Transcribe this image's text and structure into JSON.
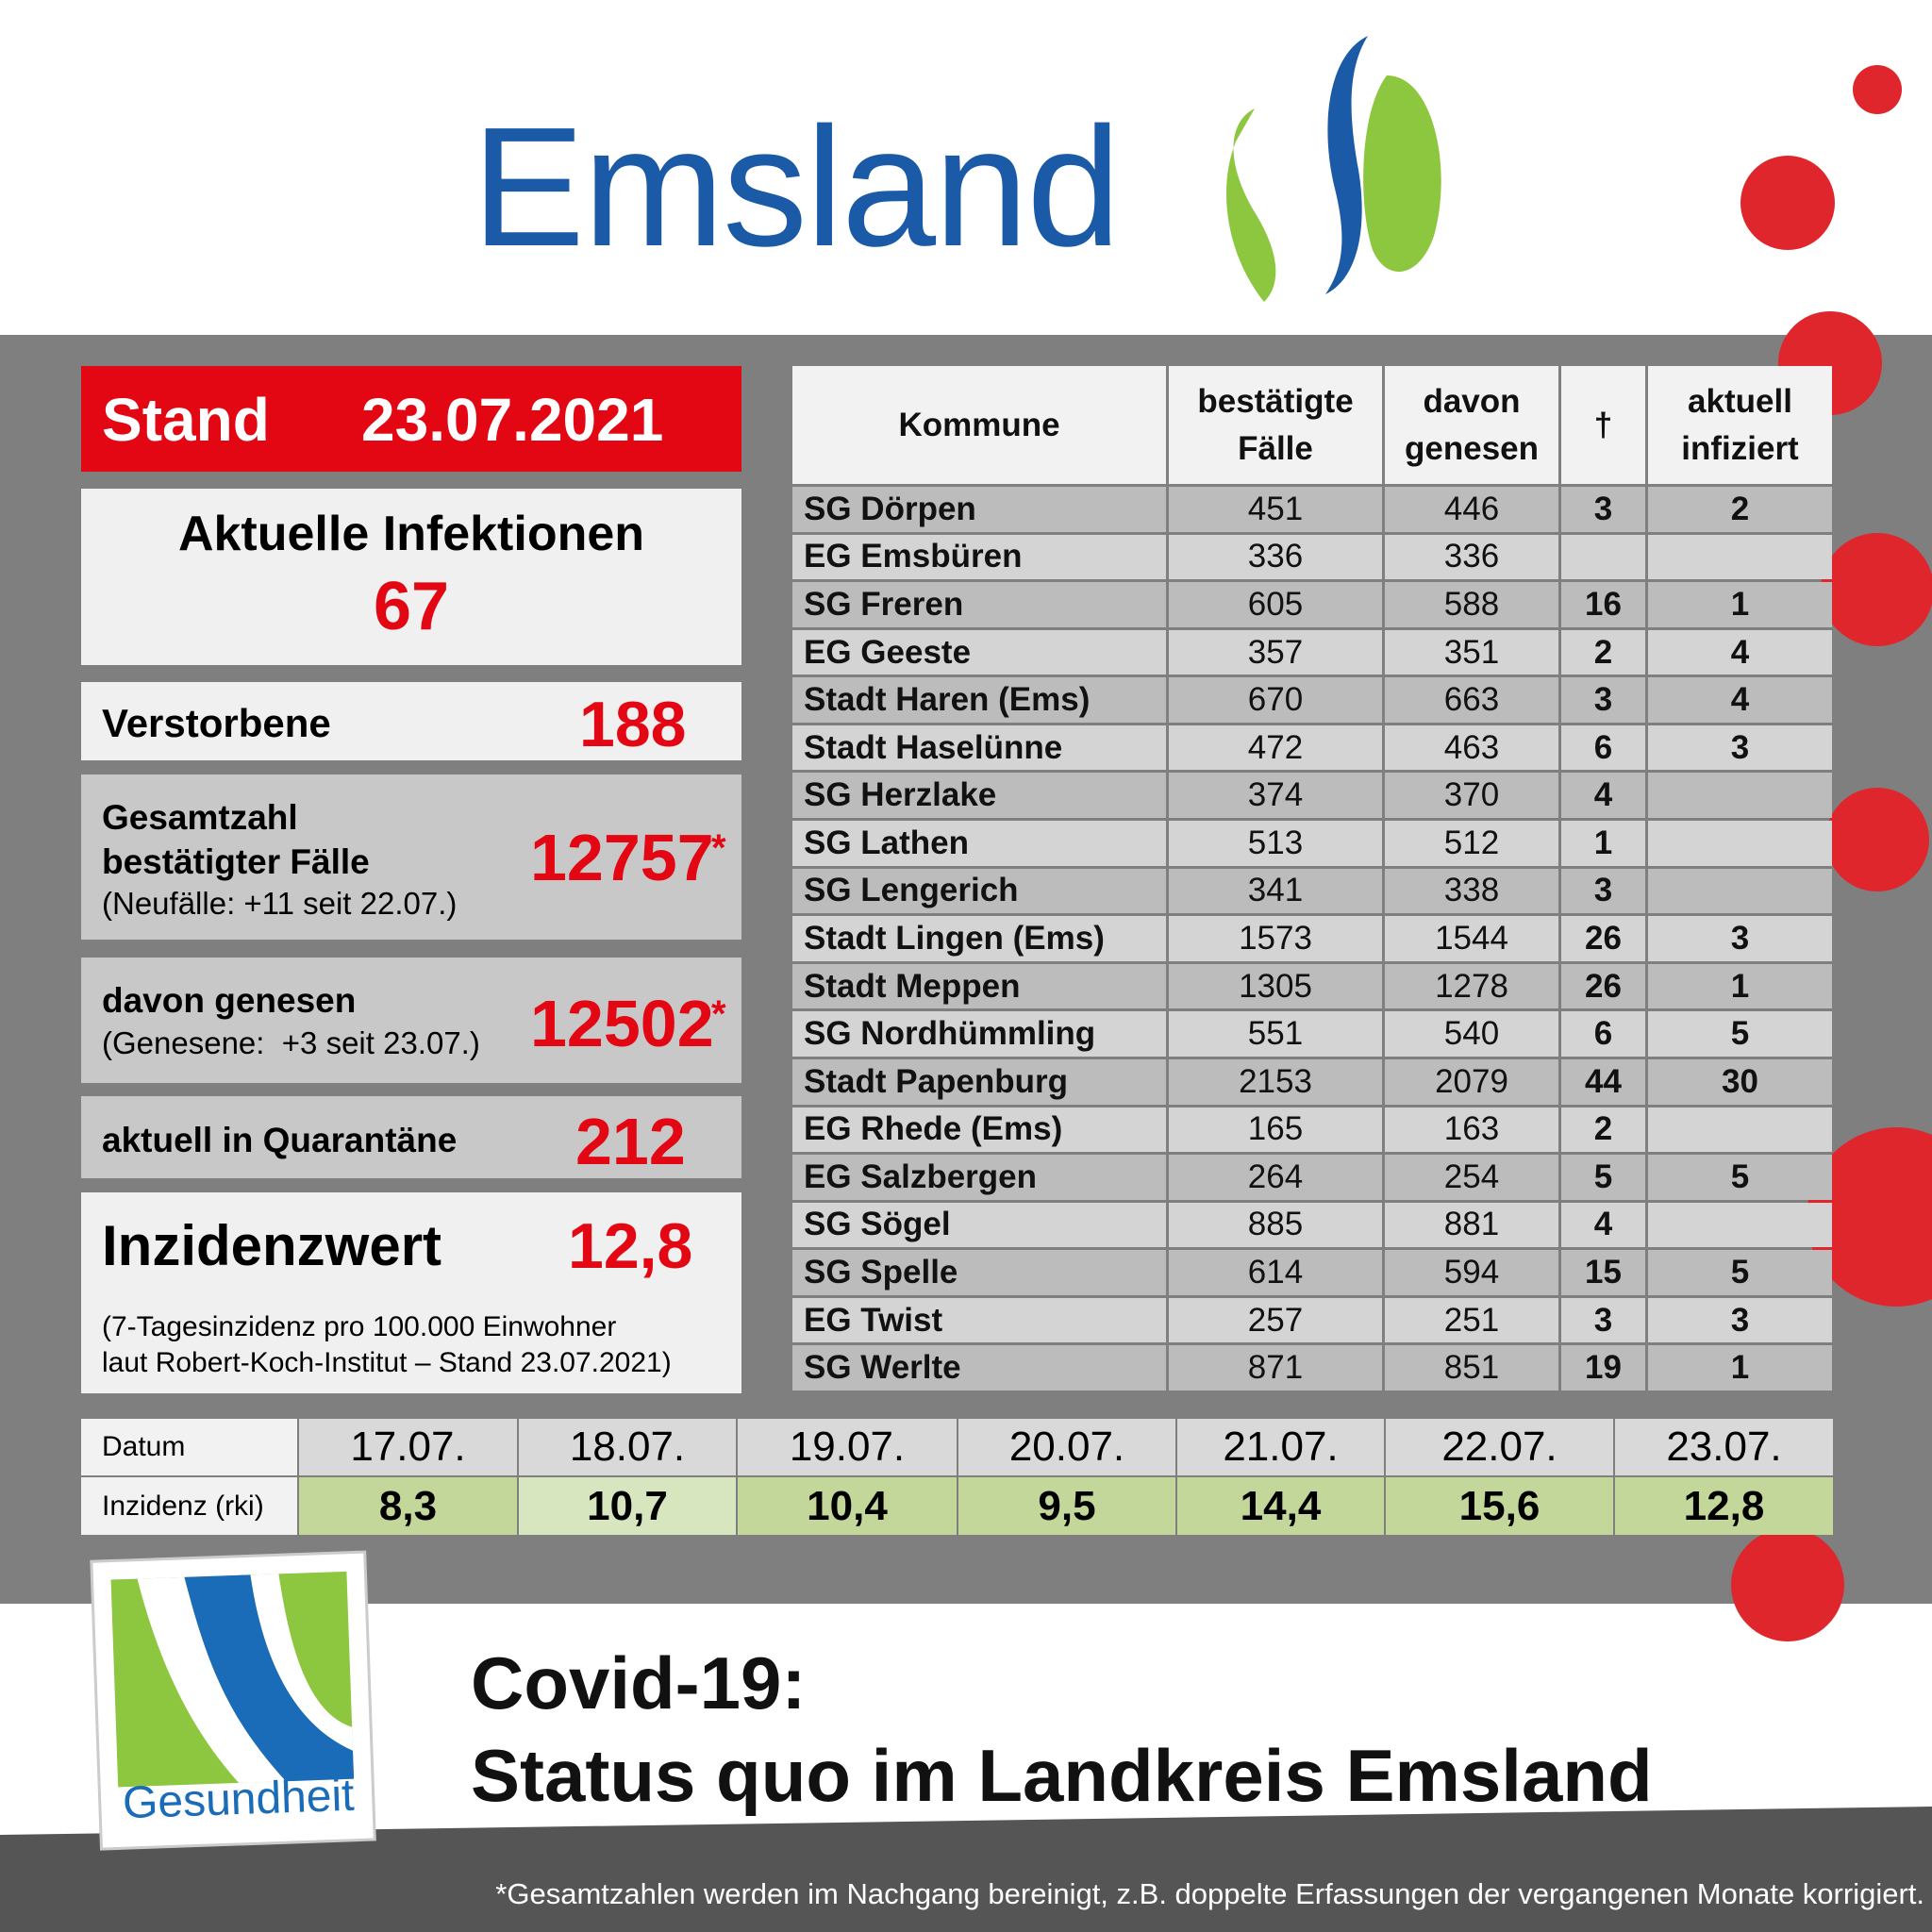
{
  "logo": {
    "name": "Emsland"
  },
  "stand": {
    "label": "Stand",
    "date": "23.07.2021"
  },
  "summary": {
    "infections": {
      "label": "Aktuelle Infektionen",
      "value": 67
    },
    "deaths": {
      "label": "Verstorbene",
      "value": 188
    },
    "total": {
      "label_lines": [
        "Gesamtzahl",
        "bestätigter Fälle"
      ],
      "note": "(Neufälle: +11 seit 22.07.)",
      "value": 12757,
      "mark": "*"
    },
    "recovered": {
      "label": "davon genesen",
      "note": "(Genesene:  +3 seit 23.07.)",
      "value": 12502,
      "mark": "*"
    },
    "quarantine": {
      "label": "aktuell in Quarantäne",
      "value": 212
    },
    "incidence": {
      "label": "Inzidenzwert",
      "value": "12,8",
      "note_lines": [
        "(7-Tagesinzidenz pro 100.000 Einwohner",
        "laut Robert-Koch-Institut – Stand 23.07.2021)"
      ]
    }
  },
  "table": {
    "headers": [
      [
        "Kommune"
      ],
      [
        "bestätigte",
        "Fälle"
      ],
      [
        "davon",
        "genesen"
      ],
      [
        "†"
      ],
      [
        "aktuell",
        "infiziert"
      ]
    ],
    "rows": [
      [
        "SG Dörpen",
        451,
        446,
        3,
        2
      ],
      [
        "EG Emsbüren",
        336,
        336,
        null,
        null
      ],
      [
        "SG Freren",
        605,
        588,
        16,
        1
      ],
      [
        "EG Geeste",
        357,
        351,
        2,
        4
      ],
      [
        "Stadt Haren (Ems)",
        670,
        663,
        3,
        4
      ],
      [
        "Stadt Haselünne",
        472,
        463,
        6,
        3
      ],
      [
        "SG Herzlake",
        374,
        370,
        4,
        null
      ],
      [
        "SG Lathen",
        513,
        512,
        1,
        null
      ],
      [
        "SG Lengerich",
        341,
        338,
        3,
        null
      ],
      [
        "Stadt Lingen (Ems)",
        1573,
        1544,
        26,
        3
      ],
      [
        "Stadt Meppen",
        1305,
        1278,
        26,
        1
      ],
      [
        "SG Nordhümmling",
        551,
        540,
        6,
        5
      ],
      [
        "Stadt Papenburg",
        2153,
        2079,
        44,
        30
      ],
      [
        "EG Rhede (Ems)",
        165,
        163,
        2,
        null
      ],
      [
        "EG Salzbergen",
        264,
        254,
        5,
        5
      ],
      [
        "SG Sögel",
        885,
        881,
        4,
        null
      ],
      [
        "SG Spelle",
        614,
        594,
        15,
        5
      ],
      [
        "EG Twist",
        257,
        251,
        3,
        3
      ],
      [
        "SG Werlte",
        871,
        851,
        19,
        1
      ]
    ]
  },
  "incidence_history": {
    "row_labels": [
      "Datum",
      "Inzidenz (rki)"
    ],
    "dates": [
      "17.07.",
      "18.07.",
      "19.07.",
      "20.07.",
      "21.07.",
      "22.07.",
      "23.07."
    ],
    "values": [
      "8,3",
      "10,7",
      "10,4",
      "9,5",
      "14,4",
      "15,6",
      "12,8"
    ]
  },
  "badge": "Gesundheit",
  "title_lines": [
    "Covid-19:",
    "Status quo im Landkreis Emsland"
  ],
  "footnote": "*Gesamtzahlen werden im Nachgang bereinigt, z.B. doppelte Erfassungen der vergangenen Monate korrigiert."
}
